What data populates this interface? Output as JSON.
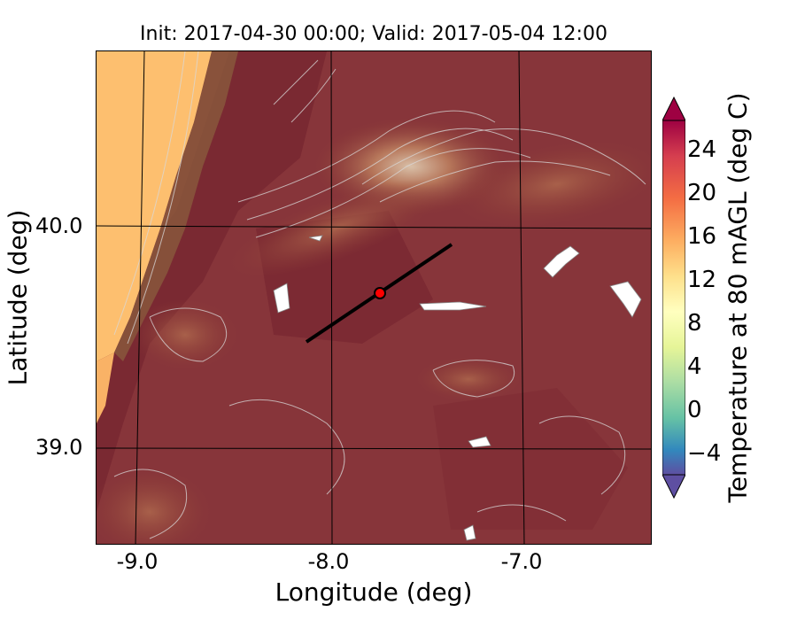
{
  "title": "Init: 2017-04-30 00:00; Valid: 2017-05-04 12:00",
  "xlabel": "Longitude (deg)",
  "ylabel": "Latitude (deg)",
  "colorbar_label": "Temperature at 80 mAGL (deg C)",
  "x_ticks": [
    "-9.0",
    "-8.0",
    "-7.0"
  ],
  "y_ticks": [
    "40.0",
    "39.0"
  ],
  "colorbar_ticks": [
    "24",
    "20",
    "16",
    "12",
    "8",
    "4",
    "0",
    "−4"
  ],
  "chart_data": {
    "type": "heatmap",
    "title": "Init: 2017-04-30 00:00; Valid: 2017-05-04 12:00",
    "xlabel": "Longitude (deg)",
    "ylabel": "Latitude (deg)",
    "x_ticks": [
      -9.0,
      -8.0,
      -7.0
    ],
    "y_ticks": [
      40.0,
      39.0
    ],
    "xlim": [
      -9.25,
      -6.37
    ],
    "ylim": [
      38.55,
      40.79
    ],
    "colorbar": {
      "label": "Temperature at 80 mAGL (deg C)",
      "range": [
        -6,
        27
      ],
      "ticks": [
        -4,
        0,
        4,
        8,
        12,
        16,
        20,
        24
      ],
      "extend": "both",
      "colormap": "Spectral_r"
    },
    "transect": {
      "start": [
        -8.13,
        39.49
      ],
      "end": [
        -7.36,
        39.91
      ]
    },
    "marker": {
      "lon": -7.75,
      "lat": 39.69,
      "color": "#ff0000"
    },
    "grid": true
  },
  "colors": {
    "ocean": "#fdbf6f",
    "land_dark": "#7a2230",
    "land_mid": "#8c3b35",
    "highland": "#a85a45",
    "contour": "#d9d9d9",
    "transect": "#000000",
    "marker": "#ff0000"
  }
}
